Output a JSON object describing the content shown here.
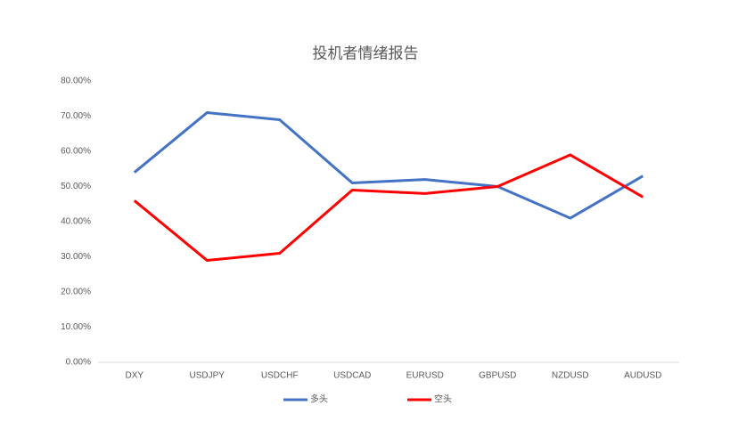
{
  "chart_data": {
    "type": "line",
    "title": "投机者情绪报告",
    "categories": [
      "DXY",
      "USDJPY",
      "USDCHF",
      "USDCAD",
      "EURUSD",
      "GBPUSD",
      "NZDUSD",
      "AUDUSD"
    ],
    "series": [
      {
        "name": "多头",
        "color": "#4472c4",
        "values": [
          54,
          71,
          69,
          51,
          52,
          50,
          41,
          53
        ]
      },
      {
        "name": "空头",
        "color": "#ff0000",
        "values": [
          46,
          29,
          31,
          49,
          48,
          50,
          59,
          47
        ]
      }
    ],
    "ylim": [
      0,
      80
    ],
    "yticks": [
      {
        "value": 0,
        "label": "0.00%"
      },
      {
        "value": 10,
        "label": "10.00%"
      },
      {
        "value": 20,
        "label": "20.00%"
      },
      {
        "value": 30,
        "label": "30.00%"
      },
      {
        "value": 40,
        "label": "40.00%"
      },
      {
        "value": 50,
        "label": "50.00%"
      },
      {
        "value": 60,
        "label": "60.00%"
      },
      {
        "value": 70,
        "label": "70.00%"
      },
      {
        "value": 80,
        "label": "80.00%"
      }
    ],
    "grid": false,
    "legend": "bottom"
  }
}
